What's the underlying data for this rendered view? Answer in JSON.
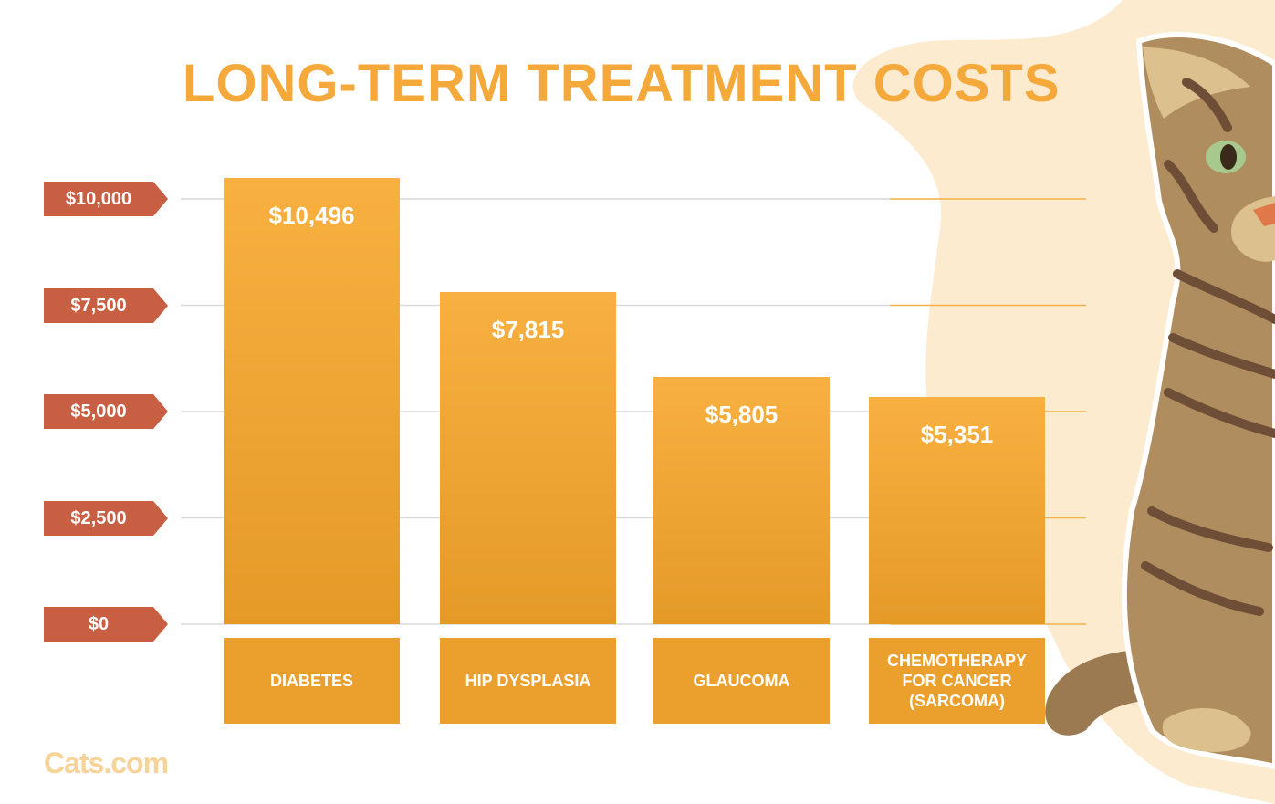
{
  "title": "LONG-TERM TREATMENT COSTS",
  "logo": "Cats.com",
  "colors": {
    "title": "#f4a93a",
    "bar_top": "#f8b040",
    "bar_bottom": "#e59a28",
    "tag": "#c85f42",
    "background_blob": "#fdebd0",
    "logo": "#f7d398"
  },
  "illustration": "tabby-cat",
  "chart_data": {
    "type": "bar",
    "categories": [
      "DIABETES",
      "HIP DYSPLASIA",
      "GLAUCOMA",
      "CHEMOTHERAPY\nFOR CANCER\n(SARCOMA)"
    ],
    "values": [
      10496,
      7815,
      5805,
      5351
    ],
    "value_labels": [
      "$10,496",
      "$7,815",
      "$5,805",
      "$5,351"
    ],
    "yticks": [
      0,
      2500,
      5000,
      7500,
      10000
    ],
    "ytick_labels": [
      "$0",
      "$2,500",
      "$5,000",
      "$7,500",
      "$10,000"
    ],
    "ylim": [
      0,
      10496
    ],
    "grid": true,
    "title": "LONG-TERM TREATMENT COSTS",
    "xlabel": "",
    "ylabel": ""
  }
}
